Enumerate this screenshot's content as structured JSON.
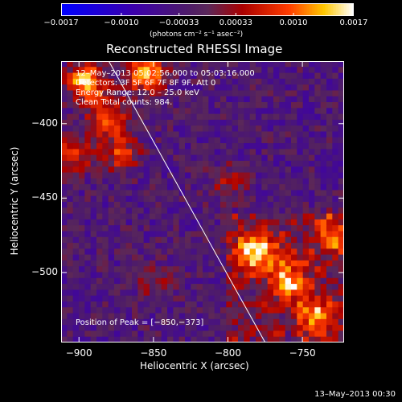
{
  "chart_data": {
    "type": "heatmap",
    "title": "Reconstructed RHESSI Image",
    "xlabel": "Heliocentric X (arcsec)",
    "ylabel": "Heliocentric Y (arcsec)",
    "xlim": [
      -912,
      -722
    ],
    "ylim": [
      -547,
      -358
    ],
    "xticks": [
      -900,
      -850,
      -800,
      -750
    ],
    "yticks": [
      -400,
      -450,
      -500
    ],
    "xtick_labels": [
      "−900",
      "−850",
      "−800",
      "−750"
    ],
    "ytick_labels": [
      "−400",
      "−450",
      "−500"
    ],
    "colorbar": {
      "min": -0.0017,
      "max": 0.0017,
      "ticks": [
        -0.0017,
        -0.001,
        -0.00033,
        0.00033,
        0.001,
        0.0017
      ],
      "tick_labels": [
        "−0.0017",
        "−0.0010",
        "−0.00033",
        "0.00033",
        "0.0010",
        "0.0017"
      ],
      "units": "(photons cm⁻² s⁻¹ asec⁻²)"
    },
    "annotations": {
      "time_range": "12–May–2013 05:02:56.000 to 05:03:16.000",
      "detectors": "Detectors: 3F 5F 6F 7F 8F 9F, Att 0",
      "energy": "Energy Range: 12.0 – 25.0 keV",
      "method": "Clean    Total counts: 984.",
      "peak": "Position of Peak = [−850,−373]"
    },
    "sources": [
      {
        "x": -895,
        "y": -372,
        "peak": 0.0017
      },
      {
        "x": -855,
        "y": -366,
        "peak": 0.0017
      },
      {
        "x": -880,
        "y": -395,
        "peak": 0.0013
      },
      {
        "x": -905,
        "y": -420,
        "peak": 0.0012
      },
      {
        "x": -872,
        "y": -420,
        "peak": 0.001
      },
      {
        "x": -782,
        "y": -485,
        "peak": 0.0017
      },
      {
        "x": -760,
        "y": -505,
        "peak": 0.0014
      },
      {
        "x": -740,
        "y": -530,
        "peak": 0.0012
      },
      {
        "x": -728,
        "y": -475,
        "peak": 0.0011
      },
      {
        "x": -800,
        "y": -440,
        "peak": 0.0006
      },
      {
        "x": -850,
        "y": -505,
        "peak": 0.0005
      }
    ],
    "limb": {
      "x": [
        -880,
        -775
      ],
      "y": [
        -358,
        -547
      ]
    }
  },
  "footer": {
    "stamp": "13–May–2013 00:30"
  }
}
